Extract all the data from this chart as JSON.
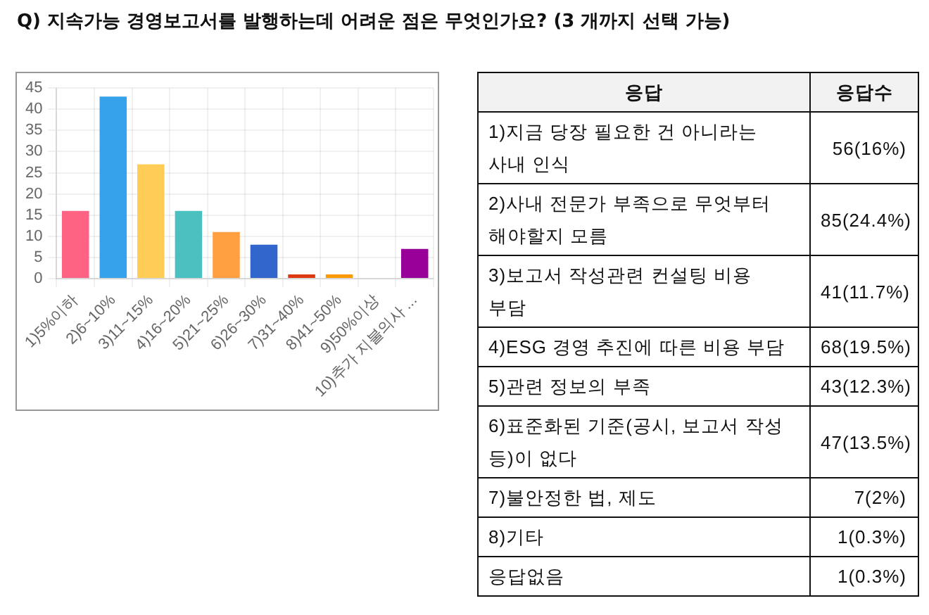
{
  "chart_data": [
    {
      "type": "bar",
      "title": "Q) 지속가능 경영보고서를 발행하는데 어려운 점은 무엇인가요? (3 개까지 선택 가능)",
      "categories": [
        "1)5%이하",
        "2)6~10%",
        "3)11~15%",
        "4)16~20%",
        "5)21~25%",
        "6)26~30%",
        "7)31~40%",
        "8)41~50%",
        "9)50%이상",
        "10)추가 지불의사 ..."
      ],
      "values": [
        16,
        43,
        27,
        16,
        11,
        8,
        1,
        1,
        0,
        7
      ],
      "colors": [
        "#ff6384",
        "#36a2eb",
        "#ffcd56",
        "#4bc0c0",
        "#ff9f40",
        "#3366cc",
        "#dc3912",
        "#ff9900",
        "#109618",
        "#990099"
      ],
      "ylim": [
        0,
        45
      ],
      "yticks": [
        0,
        5,
        10,
        15,
        20,
        25,
        30,
        35,
        40,
        45
      ],
      "grid": true
    },
    {
      "type": "other",
      "xlabel": "응답",
      "ylabel": "응답수",
      "categories": [
        "1)지금 당장 필요한 건 아니라는 사내 인식",
        "2)사내 전문가 부족으로 무엇부터 해야할지 모름",
        "3)보고서 작성관련 컨설팅 비용 부담",
        "4)ESG 경영 추진에 따른 비용 부담",
        "5)관련 정보의 부족",
        "6)표준화된 기준(공시, 보고서 작성 등)이 없다",
        "7)불안정한 법, 제도",
        "8)기타",
        "응답없음"
      ],
      "values": [
        56,
        85,
        41,
        68,
        43,
        47,
        7,
        1,
        1
      ],
      "value_labels": [
        "56(16%)",
        "85(24.4%)",
        "41(11.7%)",
        "68(19.5%)",
        "43(12.3%)",
        "47(13.5%)",
        "7(2%)",
        "1(0.3%)",
        "1(0.3%)"
      ]
    }
  ]
}
